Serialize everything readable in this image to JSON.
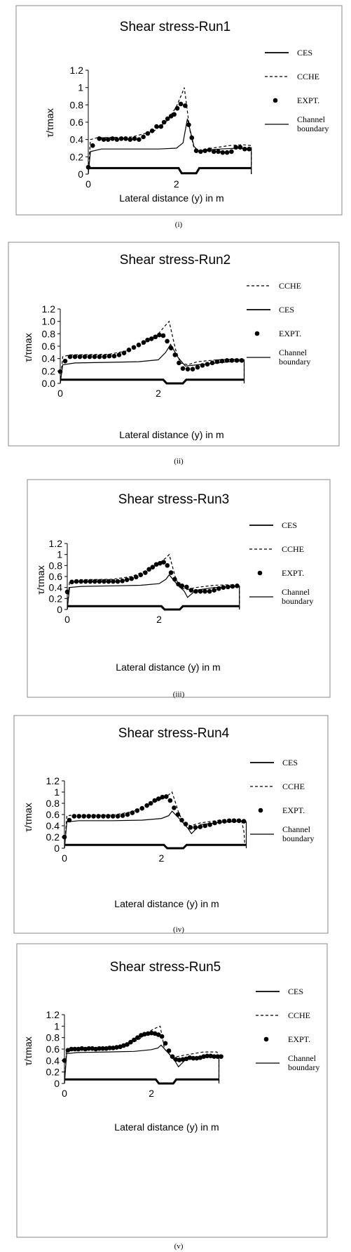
{
  "chart_data": [
    {
      "type": "line",
      "title": "Shear stress-Run1",
      "xlabel": "Lateral distance (y) in m",
      "ylabel": "τ/τmax",
      "caption": "(i)",
      "xlim": [
        0,
        3.8
      ],
      "ylim": [
        0,
        1.2
      ],
      "x_tick_labels": [
        "0",
        "2"
      ],
      "y_tick_labels": [
        "0",
        "0.2",
        "0.4",
        "0.6",
        "0.8",
        "1",
        "1.2"
      ],
      "legend_order": [
        "CES",
        "CCHE",
        "EXPT.",
        "Channel boundary"
      ],
      "series": [
        {
          "name": "CES",
          "style": "solid",
          "x": [
            0,
            0.05,
            0.3,
            1.0,
            1.6,
            2.0,
            2.15,
            2.25,
            2.4,
            2.5,
            2.7,
            3.0,
            3.4,
            3.7,
            3.7
          ],
          "y": [
            0,
            0.26,
            0.29,
            0.29,
            0.29,
            0.3,
            0.36,
            0.64,
            0.32,
            0.27,
            0.28,
            0.29,
            0.3,
            0.29,
            0
          ]
        },
        {
          "name": "CCHE",
          "style": "dashed",
          "x": [
            0,
            0.05,
            0.2,
            1.0,
            1.5,
            1.8,
            2.0,
            2.12,
            2.18,
            2.3,
            2.4,
            2.55,
            2.8,
            3.2,
            3.5,
            3.7,
            3.7
          ],
          "y": [
            0,
            0.4,
            0.42,
            0.43,
            0.5,
            0.62,
            0.78,
            0.92,
            1.0,
            0.52,
            0.3,
            0.27,
            0.3,
            0.33,
            0.34,
            0.33,
            0
          ]
        },
        {
          "name": "EXPT.",
          "style": "markers",
          "x": [
            0.0,
            0.1,
            0.25,
            0.35,
            0.45,
            0.55,
            0.65,
            0.75,
            0.85,
            0.95,
            1.05,
            1.15,
            1.25,
            1.35,
            1.45,
            1.55,
            1.65,
            1.72,
            1.8,
            1.88,
            1.95,
            2.02,
            2.1,
            2.2,
            2.28,
            2.35,
            2.45,
            2.55,
            2.65,
            2.75,
            2.85,
            2.95,
            3.05,
            3.15,
            3.25,
            3.35,
            3.45,
            3.55,
            3.65
          ],
          "y": [
            0.08,
            0.33,
            0.41,
            0.4,
            0.4,
            0.41,
            0.4,
            0.41,
            0.41,
            0.4,
            0.41,
            0.4,
            0.43,
            0.47,
            0.5,
            0.55,
            0.55,
            0.6,
            0.64,
            0.67,
            0.69,
            0.76,
            0.81,
            0.79,
            0.57,
            0.42,
            0.27,
            0.26,
            0.27,
            0.28,
            0.26,
            0.26,
            0.25,
            0.25,
            0.26,
            0.31,
            0.31,
            0.29,
            0.29
          ]
        },
        {
          "name": "Channel boundary",
          "style": "thick",
          "x": [
            0,
            2.05,
            2.12,
            2.45,
            2.52,
            3.7
          ],
          "y": [
            0.07,
            0.07,
            0.01,
            0.01,
            0.07,
            0.07
          ]
        }
      ]
    },
    {
      "type": "line",
      "title": "Shear stress-Run2",
      "xlabel": "Lateral distance (y) in m",
      "ylabel": "τ/τmax",
      "caption": "(ii)",
      "xlim": [
        0,
        3.8
      ],
      "ylim": [
        0,
        1.2
      ],
      "x_tick_labels": [
        "0",
        "2"
      ],
      "y_tick_labels": [
        "0.0",
        "0.2",
        "0.4",
        "0.6",
        "0.8",
        "1.0",
        "1.2"
      ],
      "legend_order": [
        "CCHE",
        "CES",
        "EXPT.",
        "Channel boundary"
      ],
      "series": [
        {
          "name": "CES",
          "style": "solid",
          "x": [
            0,
            0.05,
            0.3,
            1.0,
            1.6,
            2.0,
            2.15,
            2.25,
            2.4,
            2.55,
            2.8,
            3.2,
            3.6,
            3.75,
            3.75
          ],
          "y": [
            0,
            0.3,
            0.33,
            0.34,
            0.35,
            0.38,
            0.5,
            0.63,
            0.42,
            0.28,
            0.3,
            0.33,
            0.36,
            0.36,
            0
          ]
        },
        {
          "name": "CCHE",
          "style": "dashed",
          "x": [
            0,
            0.05,
            0.2,
            1.0,
            1.4,
            1.7,
            2.0,
            2.15,
            2.22,
            2.35,
            2.45,
            2.6,
            2.8,
            3.2,
            3.5,
            3.75,
            3.75
          ],
          "y": [
            0,
            0.43,
            0.46,
            0.47,
            0.53,
            0.64,
            0.8,
            0.94,
            1.0,
            0.55,
            0.33,
            0.3,
            0.35,
            0.38,
            0.39,
            0.38,
            0
          ]
        },
        {
          "name": "EXPT.",
          "style": "markers",
          "x": [
            0.0,
            0.1,
            0.2,
            0.3,
            0.4,
            0.5,
            0.6,
            0.7,
            0.8,
            0.9,
            1.0,
            1.1,
            1.2,
            1.3,
            1.4,
            1.5,
            1.6,
            1.7,
            1.78,
            1.86,
            1.94,
            2.02,
            2.1,
            2.18,
            2.26,
            2.34,
            2.42,
            2.5,
            2.6,
            2.7,
            2.8,
            2.9,
            3.0,
            3.1,
            3.2,
            3.3,
            3.4,
            3.5,
            3.6,
            3.7
          ],
          "y": [
            0.19,
            0.36,
            0.43,
            0.43,
            0.43,
            0.43,
            0.43,
            0.43,
            0.43,
            0.43,
            0.44,
            0.44,
            0.46,
            0.49,
            0.54,
            0.58,
            0.62,
            0.66,
            0.7,
            0.72,
            0.75,
            0.78,
            0.77,
            0.68,
            0.57,
            0.46,
            0.33,
            0.24,
            0.23,
            0.23,
            0.26,
            0.29,
            0.31,
            0.33,
            0.35,
            0.36,
            0.37,
            0.37,
            0.37,
            0.37
          ]
        },
        {
          "name": "Channel boundary",
          "style": "thick",
          "x": [
            0,
            2.1,
            2.17,
            2.5,
            2.57,
            3.75
          ],
          "y": [
            0.06,
            0.06,
            0.0,
            0.0,
            0.06,
            0.06
          ]
        }
      ]
    },
    {
      "type": "line",
      "title": "Shear stress-Run3",
      "xlabel": "Lateral distance (y) in m",
      "ylabel": "τ/τmax",
      "caption": "(iii)",
      "xlim": [
        0,
        3.8
      ],
      "ylim": [
        0,
        1.2
      ],
      "x_tick_labels": [
        "0",
        "2"
      ],
      "y_tick_labels": [
        "0",
        "0.2",
        "0.4",
        "0.6",
        "0.8",
        "1",
        "1.2"
      ],
      "legend_order": [
        "CES",
        "CCHE",
        "EXPT.",
        "Channel boundary"
      ],
      "series": [
        {
          "name": "CES",
          "style": "solid",
          "x": [
            0,
            0.05,
            0.3,
            1.0,
            1.6,
            2.0,
            2.15,
            2.22,
            2.4,
            2.55,
            2.62,
            2.8,
            3.2,
            3.6,
            3.75,
            3.75
          ],
          "y": [
            0,
            0.4,
            0.42,
            0.43,
            0.44,
            0.47,
            0.55,
            0.63,
            0.45,
            0.33,
            0.22,
            0.35,
            0.4,
            0.42,
            0.42,
            0
          ]
        },
        {
          "name": "CCHE",
          "style": "dashed",
          "x": [
            0,
            0.05,
            0.2,
            1.0,
            1.4,
            1.7,
            2.0,
            2.15,
            2.22,
            2.35,
            2.45,
            2.6,
            2.8,
            3.2,
            3.5,
            3.75,
            3.75
          ],
          "y": [
            0,
            0.52,
            0.54,
            0.55,
            0.6,
            0.7,
            0.84,
            0.94,
            1.0,
            0.6,
            0.4,
            0.36,
            0.4,
            0.44,
            0.45,
            0.44,
            0
          ]
        },
        {
          "name": "EXPT.",
          "style": "markers",
          "x": [
            0.0,
            0.1,
            0.2,
            0.3,
            0.4,
            0.5,
            0.6,
            0.7,
            0.8,
            0.9,
            1.0,
            1.1,
            1.2,
            1.3,
            1.4,
            1.5,
            1.6,
            1.7,
            1.78,
            1.86,
            1.94,
            2.02,
            2.1,
            2.18,
            2.26,
            2.34,
            2.42,
            2.5,
            2.6,
            2.7,
            2.8,
            2.9,
            3.0,
            3.1,
            3.2,
            3.3,
            3.4,
            3.5,
            3.6,
            3.7
          ],
          "y": [
            0.32,
            0.5,
            0.51,
            0.51,
            0.51,
            0.51,
            0.51,
            0.51,
            0.51,
            0.51,
            0.51,
            0.51,
            0.52,
            0.54,
            0.56,
            0.59,
            0.63,
            0.67,
            0.73,
            0.77,
            0.82,
            0.84,
            0.86,
            0.8,
            0.67,
            0.55,
            0.46,
            0.43,
            0.41,
            0.35,
            0.33,
            0.33,
            0.33,
            0.33,
            0.35,
            0.38,
            0.4,
            0.41,
            0.42,
            0.43
          ]
        },
        {
          "name": "Channel boundary",
          "style": "thick",
          "x": [
            0,
            2.05,
            2.12,
            2.45,
            2.52,
            3.75
          ],
          "y": [
            0.06,
            0.06,
            0.0,
            0.0,
            0.06,
            0.06
          ]
        }
      ]
    },
    {
      "type": "line",
      "title": "Shear stress-Run4",
      "xlabel": "Lateral distance (y) in m",
      "ylabel": "τ/τmax",
      "caption": "(iv)",
      "xlim": [
        0,
        3.8
      ],
      "ylim": [
        0,
        1.2
      ],
      "x_tick_labels": [
        "0",
        "2"
      ],
      "y_tick_labels": [
        "0",
        "0.2",
        "0.4",
        "0.6",
        "0.8",
        "1",
        "1.2"
      ],
      "legend_order": [
        "CES",
        "CCHE",
        "EXPT.",
        "Channel boundary"
      ],
      "series": [
        {
          "name": "CES",
          "style": "solid",
          "x": [
            0,
            0.05,
            0.3,
            1.0,
            1.6,
            2.0,
            2.15,
            2.22,
            2.4,
            2.55,
            2.62,
            2.8,
            3.2,
            3.6,
            3.75,
            3.75
          ],
          "y": [
            0,
            0.47,
            0.49,
            0.49,
            0.5,
            0.53,
            0.58,
            0.66,
            0.5,
            0.35,
            0.26,
            0.42,
            0.46,
            0.48,
            0.47,
            0
          ]
        },
        {
          "name": "CCHE",
          "style": "dashed",
          "x": [
            0,
            0.05,
            0.2,
            1.0,
            1.4,
            1.7,
            2.0,
            2.15,
            2.22,
            2.35,
            2.45,
            2.6,
            2.8,
            3.2,
            3.5,
            3.65,
            3.7,
            3.72
          ],
          "y": [
            0,
            0.58,
            0.59,
            0.59,
            0.65,
            0.75,
            0.88,
            0.95,
            1.0,
            0.65,
            0.45,
            0.4,
            0.45,
            0.5,
            0.52,
            0.5,
            0.3,
            0.07
          ]
        },
        {
          "name": "EXPT.",
          "style": "markers",
          "x": [
            0.0,
            0.1,
            0.2,
            0.3,
            0.4,
            0.5,
            0.6,
            0.7,
            0.8,
            0.9,
            1.0,
            1.1,
            1.2,
            1.3,
            1.4,
            1.5,
            1.6,
            1.7,
            1.78,
            1.86,
            1.94,
            2.02,
            2.1,
            2.18,
            2.26,
            2.34,
            2.42,
            2.5,
            2.6,
            2.7,
            2.8,
            2.9,
            3.0,
            3.1,
            3.2,
            3.3,
            3.4,
            3.5,
            3.6,
            3.7
          ],
          "y": [
            0.2,
            0.5,
            0.57,
            0.57,
            0.57,
            0.57,
            0.57,
            0.57,
            0.57,
            0.57,
            0.57,
            0.57,
            0.58,
            0.6,
            0.63,
            0.67,
            0.71,
            0.76,
            0.8,
            0.85,
            0.88,
            0.91,
            0.92,
            0.85,
            0.72,
            0.6,
            0.5,
            0.43,
            0.37,
            0.37,
            0.38,
            0.4,
            0.42,
            0.45,
            0.47,
            0.48,
            0.49,
            0.49,
            0.49,
            0.48
          ]
        },
        {
          "name": "Channel boundary",
          "style": "thick",
          "x": [
            0,
            2.05,
            2.12,
            2.45,
            2.52,
            3.75
          ],
          "y": [
            0.06,
            0.06,
            0.0,
            0.0,
            0.06,
            0.06
          ]
        }
      ]
    },
    {
      "type": "line",
      "title": "Shear stress-Run5",
      "xlabel": "Lateral distance (y) in m",
      "ylabel": "τ/τmax",
      "caption": "(v)",
      "xlim": [
        0,
        3.8
      ],
      "ylim": [
        0,
        1.2
      ],
      "x_tick_labels": [
        "0",
        "2"
      ],
      "y_tick_labels": [
        "0",
        "0.2",
        "0.4",
        "0.6",
        "0.8",
        "1",
        "1.2"
      ],
      "legend_order": [
        "CES",
        "CCHE",
        "EXPT.",
        "Channel boundary"
      ],
      "series": [
        {
          "name": "CES",
          "style": "solid",
          "x": [
            0,
            0.05,
            0.3,
            1.0,
            1.6,
            2.0,
            2.15,
            2.22,
            2.4,
            2.55,
            2.62,
            2.8,
            3.2,
            3.5,
            3.55,
            3.55
          ],
          "y": [
            0,
            0.52,
            0.54,
            0.55,
            0.56,
            0.59,
            0.62,
            0.67,
            0.52,
            0.38,
            0.29,
            0.43,
            0.48,
            0.49,
            0.48,
            0
          ]
        },
        {
          "name": "CCHE",
          "style": "dashed",
          "x": [
            0,
            0.05,
            0.2,
            1.0,
            1.4,
            1.7,
            1.9,
            2.05,
            2.2,
            2.3,
            2.45,
            2.6,
            2.8,
            3.2,
            3.5,
            3.55,
            3.55
          ],
          "y": [
            0,
            0.6,
            0.61,
            0.62,
            0.66,
            0.76,
            0.88,
            0.95,
            1.0,
            0.6,
            0.48,
            0.47,
            0.5,
            0.55,
            0.55,
            0.5,
            0
          ]
        },
        {
          "name": "EXPT.",
          "style": "markers",
          "x": [
            0.0,
            0.08,
            0.16,
            0.24,
            0.32,
            0.4,
            0.48,
            0.56,
            0.64,
            0.72,
            0.8,
            0.88,
            0.96,
            1.04,
            1.12,
            1.2,
            1.28,
            1.36,
            1.44,
            1.52,
            1.6,
            1.68,
            1.76,
            1.84,
            1.92,
            2.0,
            2.08,
            2.16,
            2.24,
            2.32,
            2.4,
            2.48,
            2.56,
            2.64,
            2.72,
            2.8,
            2.88,
            2.96,
            3.04,
            3.12,
            3.2,
            3.28,
            3.36,
            3.44,
            3.52,
            3.6
          ],
          "y": [
            0.4,
            0.58,
            0.6,
            0.6,
            0.6,
            0.61,
            0.6,
            0.61,
            0.61,
            0.6,
            0.61,
            0.61,
            0.61,
            0.62,
            0.62,
            0.63,
            0.64,
            0.66,
            0.68,
            0.72,
            0.76,
            0.8,
            0.84,
            0.86,
            0.87,
            0.88,
            0.87,
            0.85,
            0.82,
            0.7,
            0.57,
            0.47,
            0.42,
            0.41,
            0.42,
            0.43,
            0.45,
            0.44,
            0.44,
            0.45,
            0.47,
            0.48,
            0.48,
            0.47,
            0.47,
            0.47
          ]
        },
        {
          "name": "Channel boundary",
          "style": "thick",
          "x": [
            0,
            2.1,
            2.17,
            2.5,
            2.57,
            3.55
          ],
          "y": [
            0.07,
            0.07,
            0.0,
            0.0,
            0.07,
            0.07
          ]
        }
      ]
    }
  ]
}
